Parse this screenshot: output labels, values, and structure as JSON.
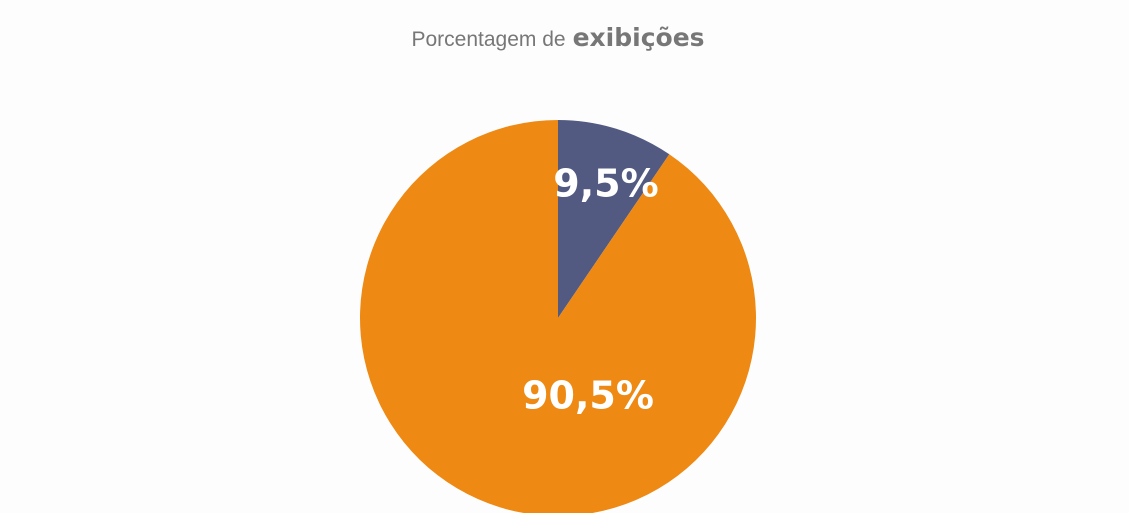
{
  "chart_data": {
    "type": "pie",
    "title": [
      "Porcentagem de",
      "exibições"
    ],
    "categories": [
      null,
      null
    ],
    "values": [
      9.5,
      90.5
    ],
    "value_labels": [
      "9,5%",
      "90,5%"
    ],
    "colors": [
      "#525a82",
      "#ee8913"
    ]
  }
}
